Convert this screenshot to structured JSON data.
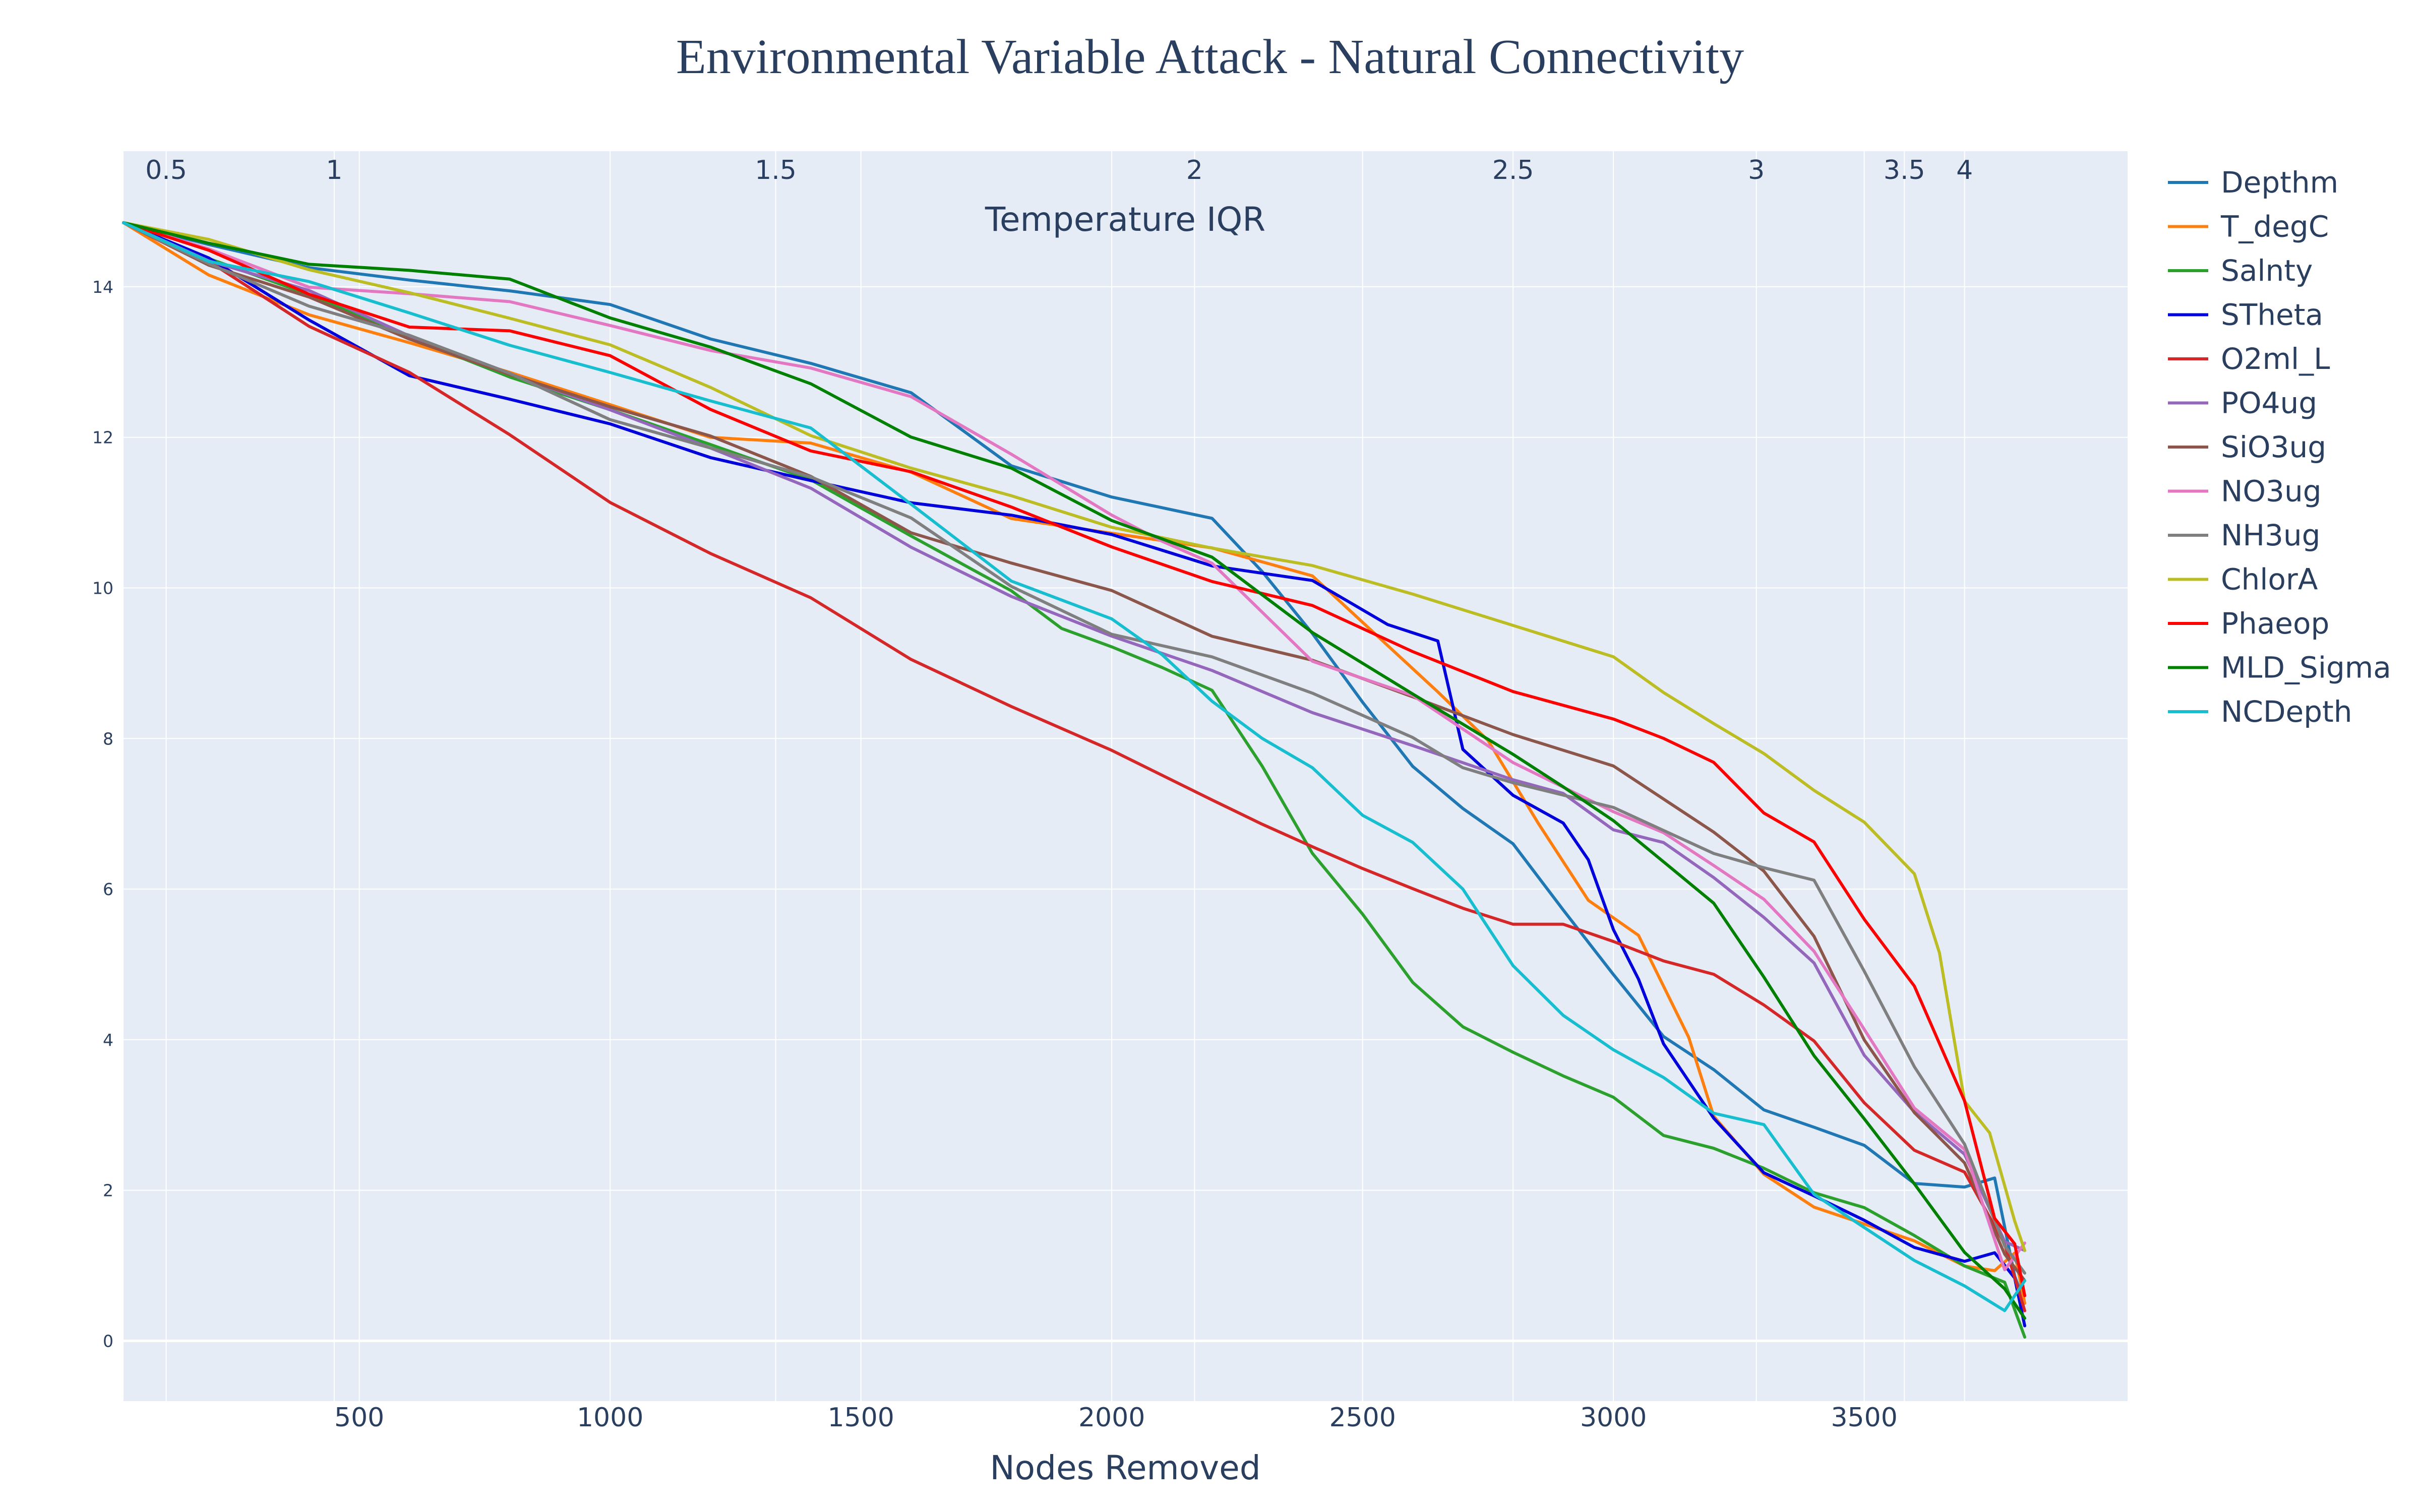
{
  "chart_data": {
    "type": "line",
    "title": "Environmental Variable Attack - Natural Connectivity",
    "xlabel": "Nodes Removed",
    "x2label": "Temperature IQR",
    "ylabel": "",
    "xlim": [
      30,
      4025
    ],
    "ylim": [
      -0.8,
      15.8
    ],
    "grid": true,
    "legend_position": "right",
    "x_ticks": [
      500,
      1000,
      1500,
      2000,
      2500,
      3000,
      3500
    ],
    "y_ticks": [
      0,
      2,
      4,
      6,
      8,
      10,
      12,
      14
    ],
    "x2_ticks": [
      {
        "label": "0.5",
        "at": 115
      },
      {
        "label": "1",
        "at": 450
      },
      {
        "label": "1.5",
        "at": 1330
      },
      {
        "label": "2",
        "at": 2165
      },
      {
        "label": "2.5",
        "at": 2800
      },
      {
        "label": "3",
        "at": 3285
      },
      {
        "label": "3.5",
        "at": 3580
      },
      {
        "label": "4",
        "at": 3700
      }
    ],
    "series": [
      {
        "name": "Depthm",
        "color": "#1f77b4",
        "x": [
          30,
          200,
          400,
          600,
          800,
          1000,
          1200,
          1400,
          1600,
          1800,
          2000,
          2200,
          2300,
          2400,
          2500,
          2600,
          2700,
          2800,
          2900,
          3000,
          3100,
          3200,
          3300,
          3400,
          3500,
          3600,
          3700,
          3760,
          3800,
          3820
        ],
        "y": [
          14.85,
          14.55,
          14.25,
          14.1,
          13.95,
          13.75,
          13.3,
          13.0,
          12.6,
          11.6,
          11.2,
          10.95,
          10.2,
          9.4,
          8.4,
          7.6,
          7.1,
          6.6,
          5.8,
          4.9,
          4.0,
          3.6,
          3.0,
          2.8,
          2.65,
          2.1,
          2.1,
          2.2,
          0.9,
          0.5
        ]
      },
      {
        "name": "T_degC",
        "color": "#ff7f0e",
        "x": [
          30,
          200,
          400,
          600,
          800,
          1000,
          1200,
          1400,
          1600,
          1800,
          2000,
          2200,
          2400,
          2550,
          2650,
          2750,
          2850,
          2950,
          3050,
          3150,
          3200,
          3300,
          3400,
          3500,
          3600,
          3700,
          3760,
          3800,
          3820
        ],
        "y": [
          14.85,
          14.2,
          13.7,
          13.2,
          12.8,
          12.5,
          12.05,
          11.85,
          11.5,
          11.0,
          10.75,
          10.45,
          10.15,
          9.2,
          8.6,
          7.9,
          6.9,
          5.9,
          5.4,
          4.1,
          3.0,
          2.2,
          1.85,
          1.6,
          1.3,
          1.0,
          1.0,
          1.1,
          0.5
        ]
      },
      {
        "name": "Salnty",
        "color": "#2ca02c",
        "x": [
          30,
          200,
          400,
          600,
          800,
          1000,
          1200,
          1400,
          1600,
          1800,
          1900,
          2000,
          2100,
          2200,
          2300,
          2400,
          2500,
          2600,
          2700,
          2800,
          2900,
          3000,
          3100,
          3200,
          3300,
          3400,
          3500,
          3600,
          3700,
          3780,
          3820
        ],
        "y": [
          14.85,
          14.4,
          13.9,
          13.3,
          12.8,
          12.4,
          11.9,
          11.4,
          10.7,
          10.0,
          9.4,
          9.2,
          8.9,
          8.6,
          7.7,
          6.5,
          5.7,
          4.8,
          4.1,
          3.8,
          3.5,
          3.2,
          2.8,
          2.6,
          2.3,
          2.0,
          1.7,
          1.35,
          1.0,
          0.7,
          0.05
        ]
      },
      {
        "name": "STheta",
        "color": "#0000dd",
        "x": [
          30,
          200,
          400,
          600,
          800,
          1000,
          1200,
          1400,
          1600,
          1800,
          2000,
          2200,
          2400,
          2550,
          2650,
          2700,
          2800,
          2900,
          2950,
          3000,
          3050,
          3100,
          3200,
          3300,
          3400,
          3500,
          3600,
          3700,
          3760,
          3800,
          3820
        ],
        "y": [
          14.85,
          14.3,
          13.55,
          12.9,
          12.5,
          12.1,
          11.75,
          11.5,
          11.1,
          10.9,
          10.75,
          10.35,
          10.05,
          9.6,
          9.3,
          7.8,
          7.3,
          6.9,
          6.3,
          5.5,
          4.8,
          4.0,
          2.9,
          2.2,
          1.9,
          1.55,
          1.3,
          1.1,
          1.1,
          0.85,
          0.2
        ]
      },
      {
        "name": "O2ml_L",
        "color": "#d62728",
        "x": [
          30,
          200,
          400,
          600,
          800,
          1000,
          1200,
          1400,
          1600,
          1800,
          2000,
          2200,
          2300,
          2400,
          2500,
          2600,
          2700,
          2800,
          2900,
          3000,
          3100,
          3200,
          3300,
          3400,
          3500,
          3600,
          3700,
          3780,
          3820
        ],
        "y": [
          14.85,
          14.3,
          13.5,
          12.9,
          12.0,
          11.1,
          10.5,
          9.9,
          9.0,
          8.4,
          7.9,
          7.2,
          6.8,
          6.5,
          6.3,
          6.0,
          5.8,
          5.6,
          5.5,
          5.3,
          5.0,
          4.8,
          4.5,
          4.0,
          3.2,
          2.6,
          2.2,
          1.3,
          0.4
        ]
      },
      {
        "name": "PO4ug",
        "color": "#9467bd",
        "x": [
          30,
          200,
          400,
          600,
          800,
          1000,
          1200,
          1400,
          1600,
          1800,
          2000,
          2200,
          2400,
          2600,
          2800,
          2900,
          3000,
          3100,
          3200,
          3300,
          3400,
          3500,
          3600,
          3700,
          3780,
          3820
        ],
        "y": [
          14.85,
          14.4,
          13.9,
          13.3,
          12.9,
          12.4,
          11.8,
          11.3,
          10.6,
          9.9,
          9.3,
          8.9,
          8.4,
          7.9,
          7.4,
          7.2,
          6.8,
          6.6,
          6.2,
          5.7,
          5.0,
          3.8,
          3.0,
          2.4,
          1.3,
          1.2
        ]
      },
      {
        "name": "SiO3ug",
        "color": "#8c564b",
        "x": [
          30,
          200,
          400,
          600,
          800,
          1000,
          1200,
          1400,
          1600,
          1800,
          2000,
          2200,
          2400,
          2600,
          2800,
          3000,
          3100,
          3200,
          3300,
          3400,
          3500,
          3600,
          3700,
          3780,
          3820
        ],
        "y": [
          14.85,
          14.3,
          13.8,
          13.3,
          12.9,
          12.4,
          11.95,
          11.5,
          10.8,
          10.3,
          9.9,
          9.4,
          9.1,
          8.5,
          8.0,
          7.7,
          7.2,
          6.8,
          6.2,
          5.3,
          4.0,
          3.0,
          2.4,
          1.2,
          0.8
        ]
      },
      {
        "name": "NO3ug",
        "color": "#e377c2",
        "x": [
          30,
          200,
          400,
          600,
          800,
          1000,
          1200,
          1400,
          1600,
          1800,
          2000,
          2100,
          2200,
          2400,
          2600,
          2800,
          3000,
          3100,
          3200,
          3300,
          3400,
          3500,
          3600,
          3700,
          3780,
          3820
        ],
        "y": [
          14.85,
          14.5,
          14.05,
          13.9,
          13.75,
          13.5,
          13.2,
          12.9,
          12.5,
          11.8,
          11.0,
          10.7,
          10.3,
          9.0,
          8.6,
          7.7,
          7.0,
          6.7,
          6.3,
          5.8,
          5.2,
          4.2,
          3.1,
          2.6,
          1.0,
          1.3
        ]
      },
      {
        "name": "NH3ug",
        "color": "#7f7f7f",
        "x": [
          30,
          200,
          400,
          600,
          800,
          1000,
          1200,
          1400,
          1600,
          1800,
          2000,
          2200,
          2400,
          2600,
          2700,
          2800,
          3000,
          3200,
          3300,
          3400,
          3500,
          3600,
          3700,
          3780,
          3820
        ],
        "y": [
          14.85,
          14.35,
          13.8,
          13.3,
          12.8,
          12.3,
          11.9,
          11.4,
          10.9,
          10.1,
          9.4,
          9.0,
          8.6,
          8.1,
          7.6,
          7.4,
          7.0,
          6.5,
          6.3,
          6.2,
          4.9,
          3.6,
          2.6,
          1.2,
          0.9
        ]
      },
      {
        "name": "ChlorA",
        "color": "#bcbd22",
        "x": [
          30,
          200,
          400,
          600,
          800,
          1000,
          1200,
          1400,
          1600,
          1800,
          2000,
          2200,
          2400,
          2600,
          2800,
          3000,
          3100,
          3200,
          3300,
          3400,
          3500,
          3600,
          3650,
          3700,
          3750,
          3800,
          3820
        ],
        "y": [
          14.85,
          14.6,
          14.2,
          13.95,
          13.6,
          13.2,
          12.65,
          12.05,
          11.6,
          11.2,
          10.8,
          10.55,
          10.3,
          9.9,
          9.5,
          9.1,
          8.7,
          8.2,
          7.8,
          7.3,
          6.8,
          6.2,
          5.2,
          3.2,
          2.7,
          1.6,
          1.2
        ]
      },
      {
        "name": "Phaeop",
        "color": "#ff0000",
        "x": [
          30,
          200,
          400,
          600,
          800,
          1000,
          1200,
          1400,
          1600,
          1800,
          2000,
          2200,
          2400,
          2600,
          2800,
          3000,
          3100,
          3200,
          3300,
          3400,
          3500,
          3600,
          3700,
          3760,
          3800,
          3820
        ],
        "y": [
          14.85,
          14.4,
          13.9,
          13.55,
          13.4,
          13.0,
          12.4,
          11.9,
          11.5,
          11.0,
          10.6,
          10.15,
          9.7,
          9.1,
          8.7,
          8.3,
          8.0,
          7.6,
          7.0,
          6.6,
          5.6,
          4.8,
          3.2,
          1.6,
          1.3,
          0.6
        ]
      },
      {
        "name": "MLD_Sigma",
        "color": "#008000",
        "x": [
          30,
          200,
          400,
          600,
          800,
          1000,
          1200,
          1400,
          1600,
          1800,
          2000,
          2200,
          2400,
          2600,
          2800,
          2900,
          3000,
          3100,
          3200,
          3300,
          3400,
          3500,
          3600,
          3700,
          3780,
          3820
        ],
        "y": [
          14.85,
          14.6,
          14.3,
          14.2,
          14.1,
          13.6,
          13.2,
          12.7,
          12.0,
          11.6,
          10.9,
          10.4,
          9.4,
          8.6,
          7.8,
          7.3,
          6.9,
          6.3,
          5.8,
          4.9,
          3.8,
          3.0,
          2.1,
          1.1,
          0.7,
          0.3
        ]
      },
      {
        "name": "NCDepth",
        "color": "#17becf",
        "x": [
          30,
          200,
          400,
          600,
          800,
          1000,
          1200,
          1400,
          1600,
          1800,
          2000,
          2100,
          2200,
          2300,
          2400,
          2500,
          2600,
          2700,
          2800,
          2900,
          3000,
          3100,
          3200,
          3300,
          3400,
          3500,
          3600,
          3700,
          3780,
          3820
        ],
        "y": [
          14.85,
          14.4,
          14.0,
          13.6,
          13.3,
          12.9,
          12.4,
          12.1,
          11.2,
          10.1,
          9.5,
          9.1,
          8.5,
          8.0,
          7.7,
          7.0,
          6.6,
          6.0,
          4.9,
          4.3,
          3.9,
          3.5,
          3.1,
          2.9,
          1.9,
          1.5,
          1.0,
          0.7,
          0.4,
          0.8
        ]
      }
    ]
  }
}
